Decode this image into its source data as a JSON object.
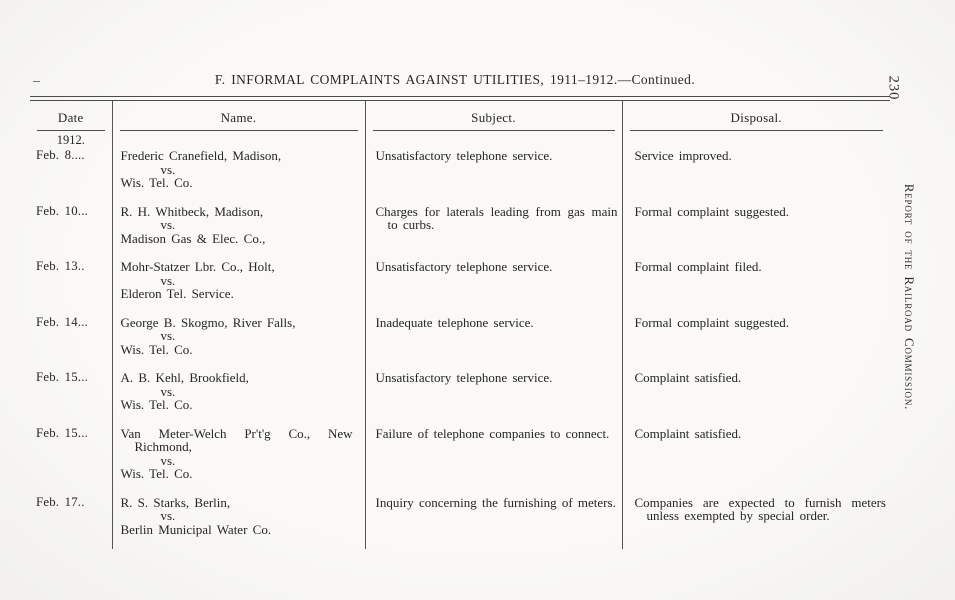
{
  "page": {
    "title": "F. INFORMAL COMPLAINTS AGAINST UTILITIES, 1911–1912.—Continued.",
    "page_number": "230",
    "side_caption": "Report of the Railroad Commission."
  },
  "table": {
    "headers": {
      "date": "Date",
      "name": "Name.",
      "subject": "Subject.",
      "disposal": "Disposal."
    },
    "year_label": "1912.",
    "vs_label": "vs.",
    "rows": [
      {
        "date": "Feb. 8....",
        "complainant": "Frederic Cranefield, Madison,",
        "respondent": "Wis. Tel. Co.",
        "subject": "Unsatisfactory telephone service.",
        "disposal": "Service improved."
      },
      {
        "date": "Feb. 10...",
        "complainant": "R. H. Whitbeck, Madison,",
        "respondent": "Madison Gas & Elec. Co.,",
        "subject": "Charges for laterals leading from gas main to curbs.",
        "disposal": "Formal complaint suggested."
      },
      {
        "date": "Feb. 13..",
        "complainant": "Mohr-Statzer Lbr. Co., Holt,",
        "respondent": "Elderon Tel. Service.",
        "subject": "Unsatisfactory telephone service.",
        "disposal": "Formal complaint filed."
      },
      {
        "date": "Feb. 14...",
        "complainant": "George B. Skogmo, River Falls,",
        "respondent": "Wis. Tel. Co.",
        "subject": "Inadequate telephone service.",
        "disposal": "Formal complaint suggested."
      },
      {
        "date": "Feb. 15...",
        "complainant": "A. B. Kehl, Brookfield,",
        "respondent": "Wis. Tel. Co.",
        "subject": "Unsatisfactory telephone service.",
        "disposal": "Complaint satisfied."
      },
      {
        "date": "Feb. 15...",
        "complainant": "Van Meter-Welch Pr't'g Co., New Richmond,",
        "respondent": "Wis. Tel. Co.",
        "subject": "Failure of telephone companies to connect.",
        "disposal": "Complaint satisfied."
      },
      {
        "date": "Feb. 17..",
        "complainant": "R. S. Starks, Berlin,",
        "respondent": "Berlin Municipal Water Co.",
        "subject": "Inquiry concerning the furnishing of meters.",
        "disposal": "Companies are expected to furnish meters unless exempted by special order."
      }
    ]
  }
}
